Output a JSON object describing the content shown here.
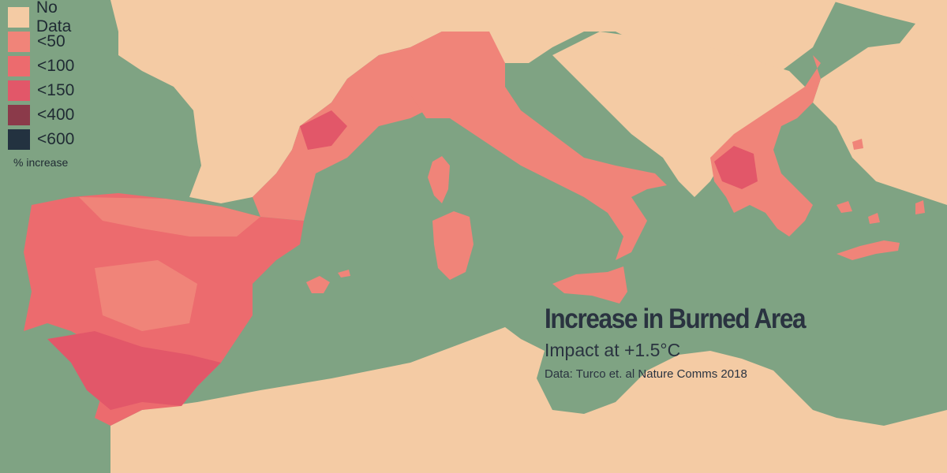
{
  "colors": {
    "sea": "#7fa383",
    "land": "#f4cba4",
    "lt50": "#f08479",
    "lt100": "#ec6b6e",
    "lt150": "#e25769",
    "lt400": "#8b3a4a",
    "lt600": "#233240"
  },
  "legend": {
    "items": [
      {
        "label": "No Data",
        "color": "#f4cba4"
      },
      {
        "label": "<50",
        "color": "#f08479"
      },
      {
        "label": "<100",
        "color": "#ec6b6e"
      },
      {
        "label": "<150",
        "color": "#e25769"
      },
      {
        "label": "<400",
        "color": "#8b3a4a"
      },
      {
        "label": "<600",
        "color": "#233240"
      }
    ],
    "unit": "% increase"
  },
  "title": "Increase in Burned Area",
  "subtitle": "Impact at +1.5°C",
  "source": "Data: Turco et. al Nature Comms 2018",
  "regions": [
    {
      "name": "Iberian Peninsula",
      "class": "<100"
    },
    {
      "name": "Southern France",
      "class": "<50"
    },
    {
      "name": "Italy",
      "class": "<50"
    },
    {
      "name": "Corsica",
      "class": "<50"
    },
    {
      "name": "Sardinia",
      "class": "<50"
    },
    {
      "name": "Sicily",
      "class": "<50"
    },
    {
      "name": "Balearic Islands",
      "class": "<50"
    },
    {
      "name": "Greece",
      "class": "<50"
    },
    {
      "name": "Crete",
      "class": "<50"
    }
  ]
}
